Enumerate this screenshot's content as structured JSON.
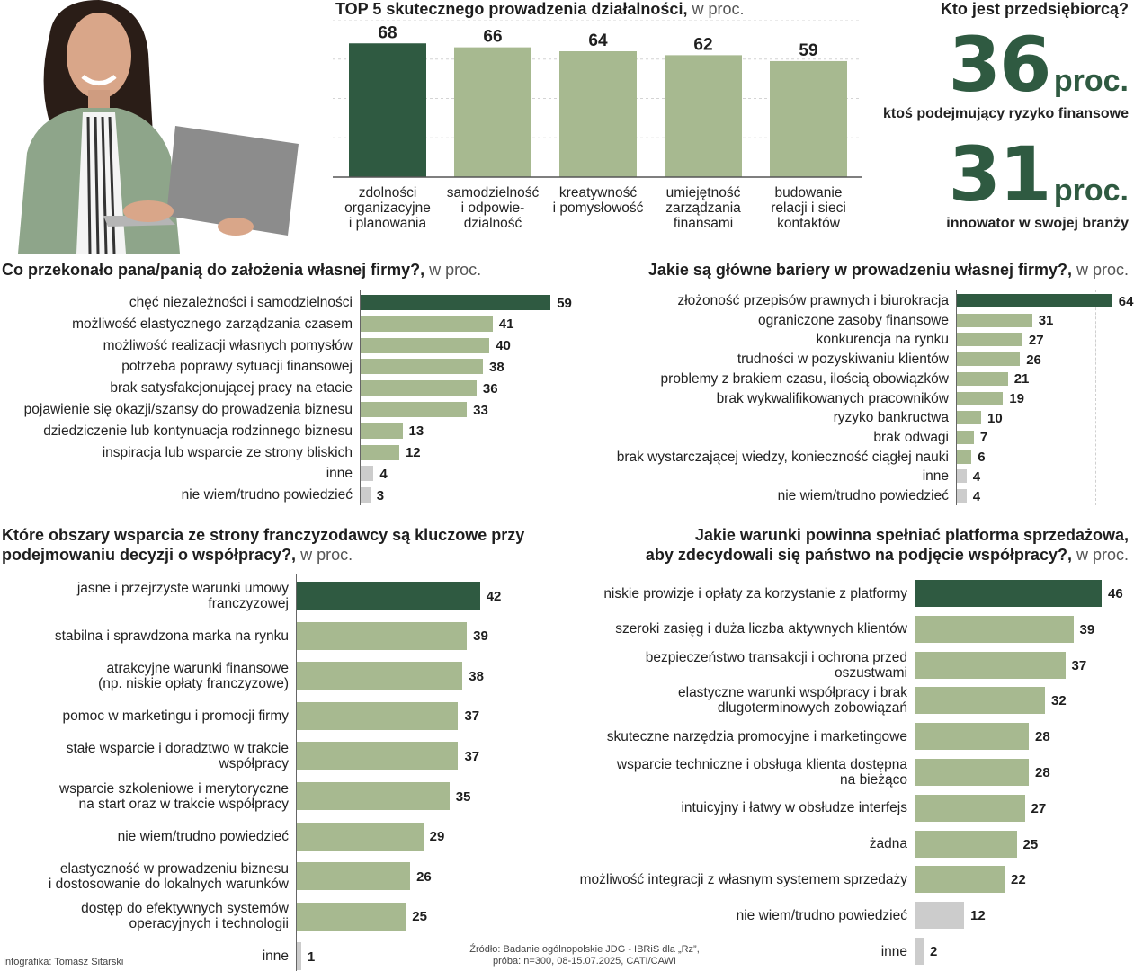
{
  "colors": {
    "dark_green": "#2f5a41",
    "light_green": "#a7b990",
    "grey": "#cccccc"
  },
  "photo": {
    "icon": "woman-with-laptop-photo"
  },
  "top5": {
    "title": "TOP 5  skutecznego prowadzenia działalności,",
    "unit": " w proc.",
    "chart_data": {
      "type": "bar",
      "categories": [
        "zdolności organizacyjne i planowania",
        "samodzielność i odpowie-dzialność",
        "kreatywność i pomysłowość",
        "umiejętność zarządzania finansami",
        "budowanie relacji i sieci kontaktów"
      ],
      "category_lines": [
        [
          "zdolności",
          "organizacyjne",
          "i planowania"
        ],
        [
          "samodzielność",
          "i odpowie-",
          "dzialność"
        ],
        [
          "kreatywność",
          "i pomysłowość"
        ],
        [
          "umiejętność",
          "zarządzania",
          "finansami"
        ],
        [
          "budowanie",
          "relacji i sieci",
          "kontaktów"
        ]
      ],
      "values": [
        68,
        66,
        64,
        62,
        59
      ],
      "highlight": [
        0
      ],
      "ylim": [
        0,
        80
      ],
      "grid": true
    }
  },
  "kto": {
    "title": "Kto jest przedsiębiorcą?",
    "items": [
      {
        "value": "36",
        "unit": "proc.",
        "label": "ktoś podejmujący ryzyko finansowe"
      },
      {
        "value": "31",
        "unit": "proc.",
        "label": "innowator w swojej branży"
      }
    ]
  },
  "charts": {
    "przekonalo": {
      "title": "Co przekonało pana/panią do założenia własnej firmy?,",
      "unit": " w proc.",
      "chart_data": {
        "type": "bar",
        "orientation": "horizontal",
        "categories": [
          "chęć niezależności i samodzielności",
          "możliwość elastycznego zarządzania czasem",
          "możliwość realizacji własnych pomysłów",
          "potrzeba poprawy sytuacji finansowej",
          "brak satysfakcjonującej pracy na etacie",
          "pojawienie się okazji/szansy do prowadzenia biznesu",
          "dziedziczenie lub kontynuacja rodzinnego biznesu",
          "inspiracja lub wsparcie ze strony bliskich",
          "inne",
          "nie wiem/trudno powiedzieć"
        ],
        "values": [
          59,
          41,
          40,
          38,
          36,
          33,
          13,
          12,
          4,
          3
        ],
        "highlight": [
          0
        ],
        "grey": [
          8,
          9
        ]
      }
    },
    "bariery": {
      "title": "Jakie są główne bariery w prowadzeniu własnej firmy?,",
      "unit": " w proc.",
      "chart_data": {
        "type": "bar",
        "orientation": "horizontal",
        "categories": [
          "złożoność przepisów prawnych i biurokracja",
          "ograniczone zasoby finansowe",
          "konkurencja na rynku",
          "trudności w pozyskiwaniu klientów",
          "problemy z brakiem czasu, ilością obowiązków",
          "brak wykwalifikowanych pracowników",
          "ryzyko bankructwa",
          "brak odwagi",
          "brak wystarczającej wiedzy, konieczność ciągłej nauki",
          "inne",
          "nie wiem/trudno powiedzieć"
        ],
        "values": [
          64,
          31,
          27,
          26,
          21,
          19,
          10,
          7,
          6,
          4,
          4
        ],
        "highlight": [
          0
        ],
        "grey": [
          9,
          10
        ]
      }
    },
    "franczyza": {
      "title_lines": [
        "Które obszary wsparcia ze strony franczyzodawcy są kluczowe przy",
        "podejmowaniu decyzji o współpracy?,"
      ],
      "unit": " w proc.",
      "chart_data": {
        "type": "bar",
        "orientation": "horizontal",
        "categories": [
          "jasne i przejrzyste warunki umowy franczyzowej",
          "stabilna i sprawdzona marka na rynku",
          "atrakcyjne warunki finansowe (np. niskie opłaty franczyzowe)",
          "pomoc w marketingu i promocji firmy",
          "stałe wsparcie i doradztwo w trakcie współpracy",
          "wsparcie szkoleniowe i merytoryczne na start oraz w trakcie współpracy",
          "nie wiem/trudno powiedzieć",
          "elastyczność w prowadzeniu biznesu i dostosowanie do lokalnych warunków",
          "dostęp do efektywnych systemów operacyjnych i technologii",
          "inne"
        ],
        "category_lines": [
          [
            "jasne i przejrzyste warunki umowy",
            "franczyzowej"
          ],
          [
            "stabilna i sprawdzona marka na rynku"
          ],
          [
            "atrakcyjne warunki finansowe",
            "(np. niskie opłaty franczyzowe)"
          ],
          [
            "pomoc w marketingu i promocji firmy"
          ],
          [
            "stałe wsparcie i doradztwo w trakcie",
            "współpracy"
          ],
          [
            "wsparcie szkoleniowe i merytoryczne",
            "na start oraz w trakcie współpracy"
          ],
          [
            "nie wiem/trudno powiedzieć"
          ],
          [
            "elastyczność w prowadzeniu biznesu",
            "i dostosowanie do lokalnych warunków"
          ],
          [
            "dostęp do efektywnych systemów",
            "operacyjnych i technologii"
          ],
          [
            "inne"
          ]
        ],
        "values": [
          42,
          39,
          38,
          37,
          37,
          35,
          29,
          26,
          25,
          1
        ],
        "highlight": [
          0
        ],
        "grey": [
          9
        ]
      }
    },
    "platforma": {
      "title_lines": [
        "Jakie warunki powinna spełniać platforma sprzedażowa,",
        "aby zdecydowali się państwo na podjęcie współpracy?,"
      ],
      "unit": " w proc.",
      "chart_data": {
        "type": "bar",
        "orientation": "horizontal",
        "categories": [
          "niskie prowizje i opłaty za korzystanie z platformy",
          "szeroki zasięg i duża liczba aktywnych klientów",
          "bezpieczeństwo transakcji i ochrona przed oszustwami",
          "elastyczne warunki współpracy i brak długoterminowych zobowiązań",
          "skuteczne narzędzia promocyjne i marketingowe",
          "wsparcie techniczne i obsługa klienta dostępna na bieżąco",
          "intuicyjny i łatwy w obsłudze interfejs",
          "żadna",
          "możliwość integracji z własnym systemem sprzedaży",
          "nie wiem/trudno powiedzieć",
          "inne"
        ],
        "category_lines": [
          [
            "niskie prowizje i opłaty za korzystanie z platformy"
          ],
          [
            "szeroki zasięg i duża liczba aktywnych klientów"
          ],
          [
            "bezpieczeństwo transakcji i ochrona przed",
            "oszustwami"
          ],
          [
            "elastyczne warunki współpracy i brak",
            "długoterminowych zobowiązań"
          ],
          [
            "skuteczne narzędzia promocyjne i marketingowe"
          ],
          [
            "wsparcie techniczne i obsługa klienta dostępna",
            "na bieżąco"
          ],
          [
            "intuicyjny i łatwy w obsłudze interfejs"
          ],
          [
            "żadna"
          ],
          [
            "możliwość integracji z własnym systemem sprzedaży"
          ],
          [
            "nie wiem/trudno powiedzieć"
          ],
          [
            "inne"
          ]
        ],
        "values": [
          46,
          39,
          37,
          32,
          28,
          28,
          27,
          25,
          22,
          12,
          2
        ],
        "highlight": [
          0
        ],
        "grey": [
          9,
          10
        ]
      }
    }
  },
  "footer": {
    "credit": "Infografika: Tomasz Sitarski",
    "source_1": "Źródło: Badanie ogólnopolskie JDG - IBRiS dla „Rz”,",
    "source_2": "próba: n=300, 08-15.07.2025, CATI/CAWI"
  }
}
